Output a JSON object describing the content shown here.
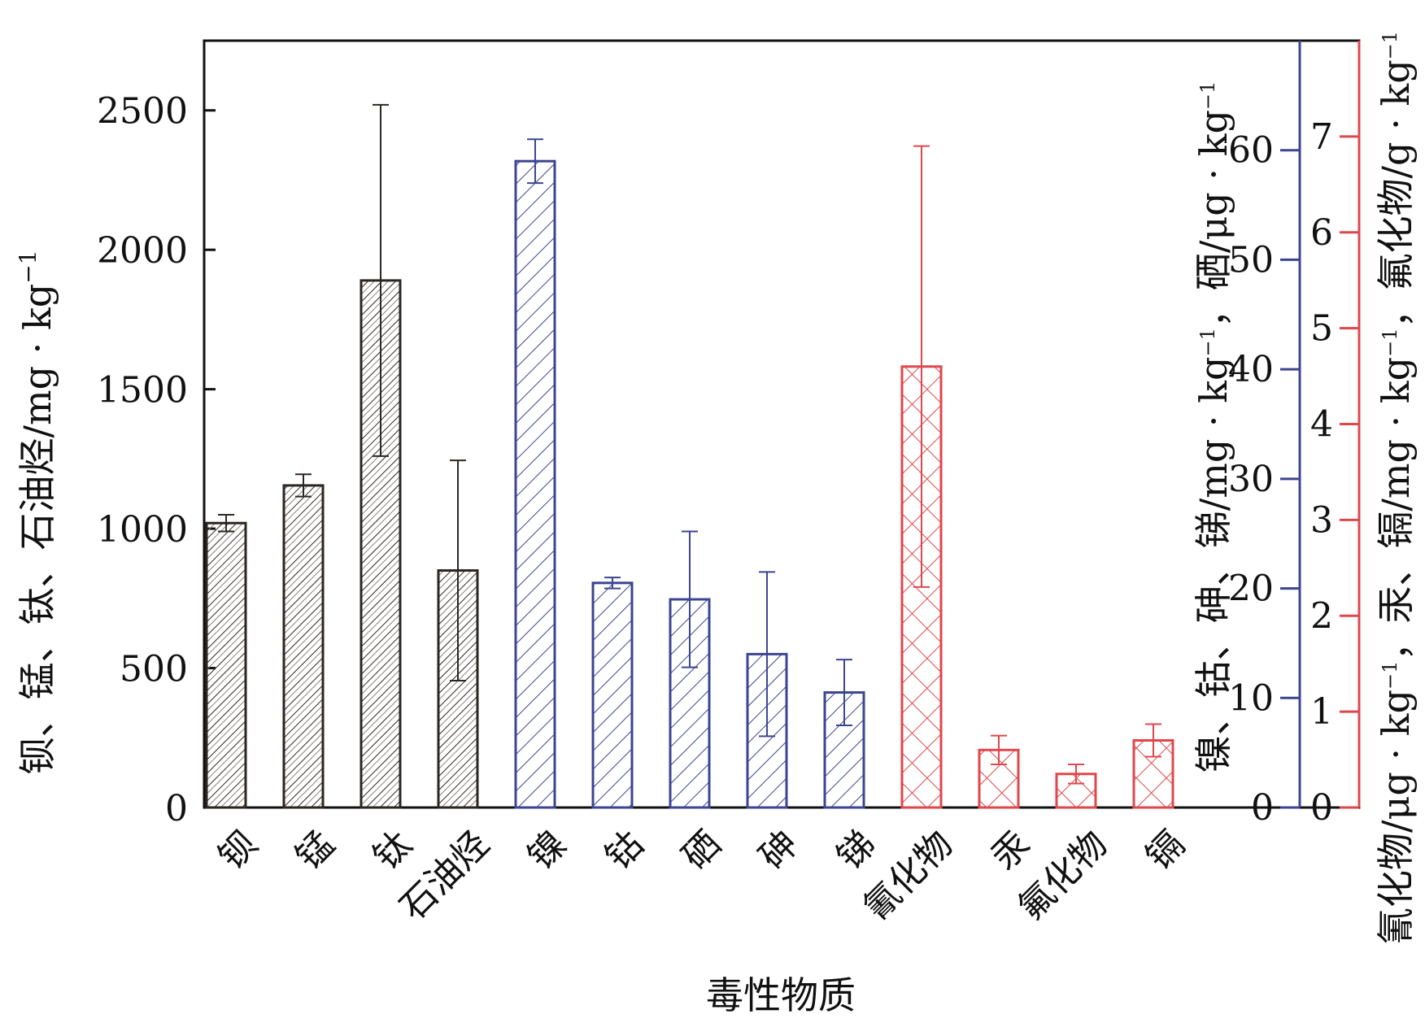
{
  "chart_data": {
    "type": "bar",
    "xlabel": "毒性物质",
    "categories": [
      "钡",
      "锰",
      "钛",
      "石油烃",
      "镍",
      "钴",
      "硒",
      "砷",
      "锑",
      "氰化物",
      "汞",
      "氟化物",
      "镉"
    ],
    "category_axis": [
      "left",
      "left",
      "left",
      "left",
      "middle",
      "middle",
      "middle",
      "middle",
      "middle",
      "right",
      "right",
      "right",
      "right"
    ],
    "values": [
      1020,
      1155,
      1890,
      850,
      59,
      20.5,
      19,
      14,
      10.5,
      4.6,
      0.6,
      0.35,
      0.7
    ],
    "errors": [
      30,
      40,
      630,
      395,
      2,
      0.5,
      6.2,
      7.5,
      3,
      2.3,
      0.15,
      0.1,
      0.17
    ],
    "axes": {
      "left": {
        "label": "钡、锰、钛、石油烃/mg · kg",
        "label_sup": "−1",
        "ylim": [
          0,
          2750
        ],
        "ticks": [
          0,
          500,
          1000,
          1500,
          2000,
          2500
        ],
        "color": "#2b2622"
      },
      "middle": {
        "label_parts": [
          "镍、钴、砷、锑/mg · kg",
          "−1",
          "，硒/μg · kg",
          "−1"
        ],
        "ylim": [
          0,
          70
        ],
        "ticks": [
          0,
          10,
          20,
          30,
          40,
          50,
          60
        ],
        "color": "#3c4592"
      },
      "right": {
        "label_parts": [
          "氰化物/μg · kg",
          "−1",
          "，汞、镉/mg · kg",
          "−1",
          "，氟化物/g · kg",
          "−1"
        ],
        "ylim": [
          0,
          8
        ],
        "ticks": [
          0,
          1,
          2,
          3,
          4,
          5,
          6,
          7
        ],
        "color": "#e0474c"
      }
    },
    "grid": false
  }
}
